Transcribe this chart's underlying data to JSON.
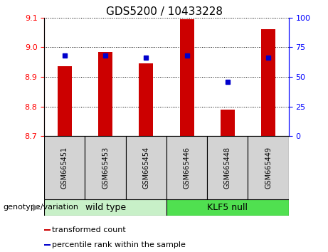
{
  "title": "GDS5200 / 10433228",
  "samples": [
    "GSM665451",
    "GSM665453",
    "GSM665454",
    "GSM665446",
    "GSM665448",
    "GSM665449"
  ],
  "groups": [
    "wild type",
    "wild type",
    "wild type",
    "KLF5 null",
    "KLF5 null",
    "KLF5 null"
  ],
  "group_labels": [
    "wild type",
    "KLF5 null"
  ],
  "group_colors": [
    "#c8f0c8",
    "#50e050"
  ],
  "transformed_counts": [
    8.935,
    8.985,
    8.945,
    9.095,
    8.79,
    9.06
  ],
  "percentile_ranks": [
    68,
    68,
    66,
    68,
    46,
    66
  ],
  "ylim_left": [
    8.7,
    9.1
  ],
  "yticks_left": [
    8.7,
    8.8,
    8.9,
    9.0,
    9.1
  ],
  "ylim_right": [
    0,
    100
  ],
  "yticks_right": [
    0,
    25,
    50,
    75,
    100
  ],
  "bar_color": "#cc0000",
  "dot_color": "#0000cc",
  "bar_width": 0.35,
  "legend_labels": [
    "transformed count",
    "percentile rank within the sample"
  ],
  "legend_colors": [
    "#cc0000",
    "#0000cc"
  ],
  "xlabel_area": "genotype/variation",
  "title_fontsize": 11,
  "tick_fontsize": 8,
  "label_fontsize": 8
}
